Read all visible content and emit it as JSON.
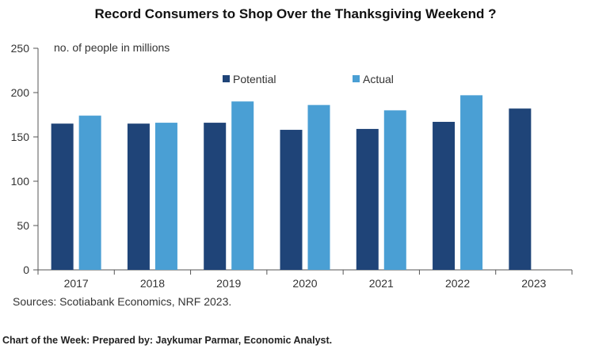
{
  "title": "Record Consumers to Shop Over the Thanksgiving Weekend ?",
  "source": "Sources: Scotiabank Economics, NRF 2023.",
  "footer": "Chart of the Week: Prepared by: Jaykumar Parmar, Economic Analyst.",
  "colors": {
    "potential": "#1f4478",
    "actual": "#4a9fd4",
    "axis": "#555555"
  },
  "chart_data": {
    "type": "bar",
    "title": "Record Consumers to Shop Over the Thanksgiving Weekend ?",
    "unit_label": "no. of people in millions",
    "categories": [
      "2017",
      "2018",
      "2019",
      "2020",
      "2021",
      "2022",
      "2023"
    ],
    "ylim": [
      0,
      250
    ],
    "yticks": [
      0,
      50,
      100,
      150,
      200,
      250
    ],
    "grid": false,
    "legend_position": "top-center",
    "series": [
      {
        "name": "Potential",
        "values": [
          165,
          165,
          166,
          158,
          159,
          167,
          182
        ]
      },
      {
        "name": "Actual",
        "values": [
          174,
          166,
          190,
          186,
          180,
          197,
          null
        ]
      }
    ]
  }
}
